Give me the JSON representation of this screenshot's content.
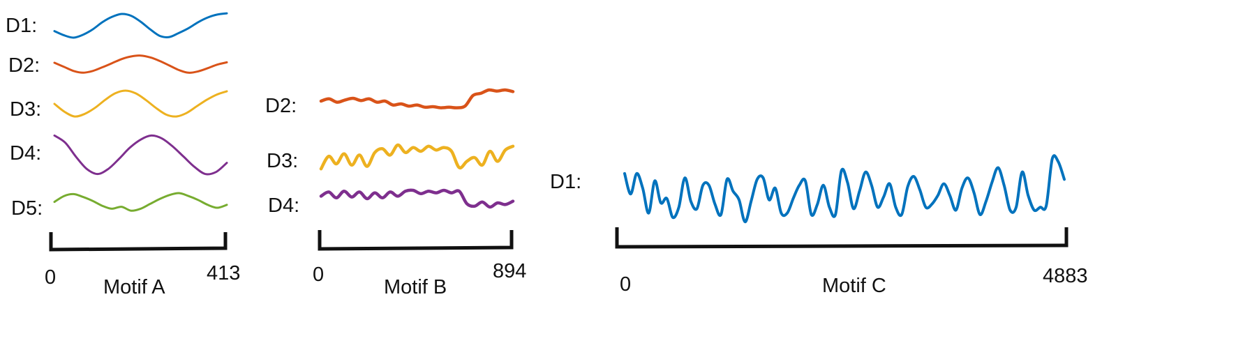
{
  "colors": {
    "D1": "#0072BD",
    "D2": "#D95319",
    "D3": "#EDB120",
    "D4": "#7E2F8E",
    "D5": "#77AC30",
    "bracket": "#111111"
  },
  "chart_data": [
    {
      "type": "line",
      "title": "Motif A",
      "x_start_label": "0",
      "x_end_label": "413",
      "xlim": [
        0,
        413
      ],
      "series": [
        {
          "name": "D1:",
          "label": "D1:",
          "color": "#0072BD",
          "values": [
            -0.45,
            -0.8,
            -1.0,
            -0.75,
            -0.3,
            0.3,
            0.75,
            1.0,
            0.85,
            0.35,
            -0.3,
            -0.85,
            -0.95,
            -0.6,
            -0.2,
            0.3,
            0.7,
            0.95,
            1.05
          ]
        },
        {
          "name": "D2:",
          "label": "D2:",
          "color": "#D95319",
          "values": [
            0.15,
            -0.3,
            -0.75,
            -0.95,
            -0.75,
            -0.35,
            0.1,
            0.55,
            0.85,
            0.95,
            0.75,
            0.35,
            -0.15,
            -0.65,
            -0.95,
            -0.8,
            -0.45,
            -0.05,
            0.2
          ]
        },
        {
          "name": "D3:",
          "label": "D3:",
          "color": "#EDB120",
          "values": [
            0.0,
            -0.6,
            -0.95,
            -0.75,
            -0.3,
            0.3,
            0.8,
            1.0,
            0.8,
            0.3,
            -0.3,
            -0.8,
            -0.95,
            -0.7,
            -0.2,
            0.3,
            0.7,
            0.95
          ]
        },
        {
          "name": "D4:",
          "label": "D4:",
          "color": "#7E2F8E",
          "values": [
            0.95,
            0.6,
            -0.1,
            -0.7,
            -0.95,
            -0.7,
            -0.2,
            0.35,
            0.75,
            0.95,
            0.8,
            0.4,
            -0.1,
            -0.6,
            -0.95,
            -0.85,
            -0.4
          ]
        },
        {
          "name": "D5:",
          "label": "D5:",
          "color": "#77AC30",
          "values": [
            0.1,
            0.7,
            0.9,
            0.6,
            0.2,
            -0.3,
            -0.6,
            -0.4,
            -0.8,
            -0.6,
            -0.1,
            0.4,
            0.8,
            1.0,
            0.7,
            0.3,
            -0.2,
            -0.5,
            -0.2
          ]
        }
      ]
    },
    {
      "type": "line",
      "title": "Motif B",
      "x_start_label": "0",
      "x_end_label": "894",
      "xlim": [
        0,
        894
      ],
      "series": [
        {
          "name": "D2:",
          "label": "D2:",
          "color": "#D95319",
          "values": [
            0.0,
            0.2,
            -0.1,
            0.1,
            0.25,
            0.05,
            0.2,
            -0.1,
            0.0,
            -0.35,
            -0.25,
            -0.45,
            -0.35,
            -0.55,
            -0.5,
            -0.6,
            -0.55,
            -0.6,
            -0.45,
            0.5,
            0.7,
            1.0,
            0.9,
            1.0,
            0.85
          ]
        },
        {
          "name": "D3:",
          "label": "D3:",
          "color": "#EDB120",
          "values": [
            -0.9,
            0.1,
            -0.5,
            0.3,
            -0.6,
            0.2,
            -0.7,
            0.4,
            0.7,
            0.2,
            1.0,
            0.4,
            0.8,
            0.5,
            0.9,
            0.6,
            0.8,
            0.5,
            -0.8,
            -0.3,
            0.0,
            -0.6,
            0.5,
            -0.3,
            0.6,
            0.9
          ]
        },
        {
          "name": "D4:",
          "label": "D4:",
          "color": "#7E2F8E",
          "values": [
            0.3,
            0.8,
            0.1,
            0.9,
            0.2,
            0.8,
            0.0,
            0.7,
            0.1,
            0.8,
            0.3,
            0.9,
            1.0,
            0.6,
            0.9,
            0.7,
            1.0,
            0.7,
            0.9,
            -0.6,
            -0.9,
            -0.4,
            -1.0,
            -0.5,
            -0.7,
            -0.3
          ]
        }
      ]
    },
    {
      "type": "line",
      "title": "Motif C",
      "x_start_label": "0",
      "x_end_label": "4883",
      "xlim": [
        0,
        4883
      ],
      "series": [
        {
          "name": "D1:",
          "label": "D1:",
          "color": "#0072BD",
          "values": [
            0.55,
            -0.15,
            0.55,
            0.05,
            -0.8,
            0.3,
            -0.45,
            -0.3,
            -0.95,
            -0.6,
            0.4,
            -0.4,
            -0.65,
            0.15,
            0.15,
            -0.5,
            -0.85,
            0.35,
            -0.05,
            -0.35,
            -1.1,
            -0.4,
            0.35,
            0.4,
            -0.35,
            0.05,
            -0.8,
            -0.8,
            -0.3,
            0.15,
            0.3,
            -0.85,
            -0.5,
            0.15,
            -0.6,
            -0.85,
            0.65,
            0.25,
            -0.65,
            -0.05,
            0.6,
            0.15,
            -0.6,
            -0.25,
            0.2,
            -0.6,
            -0.85,
            0.1,
            0.45,
            0.0,
            -0.6,
            -0.5,
            -0.2,
            0.2,
            -0.2,
            -0.7,
            0.05,
            0.4,
            -0.1,
            -0.85,
            -0.4,
            0.25,
            0.75,
            0.15,
            -0.7,
            -0.6,
            0.6,
            -0.2,
            -0.7,
            -0.6,
            -0.55,
            1.05,
            0.95,
            0.35
          ]
        }
      ]
    }
  ]
}
